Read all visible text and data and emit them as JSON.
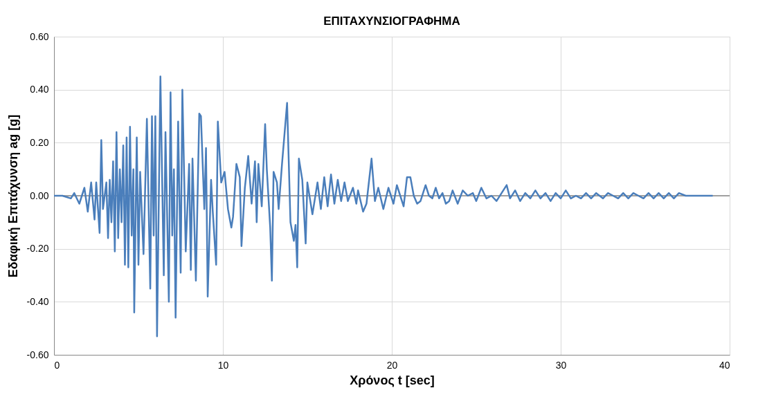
{
  "chart_data": {
    "type": "line",
    "title": "ΕΠΙΤΑΧΥΝΣΙΟΓΡΑΦΗΜΑ",
    "xlabel": "Χρόνος t [sec]",
    "ylabel": "Εδαφική Επιτάχυνση ag [g]",
    "xlim": [
      0,
      40
    ],
    "xticks": [
      0,
      10,
      20,
      30,
      40
    ],
    "ylim": [
      -0.6,
      0.6
    ],
    "yticks": [
      {
        "value": -0.6,
        "label": "-0.60"
      },
      {
        "value": -0.4,
        "label": "-0.40"
      },
      {
        "value": -0.2,
        "label": "-0.20"
      },
      {
        "value": 0,
        "label": "0.00"
      },
      {
        "value": 0.2,
        "label": "0.20"
      },
      {
        "value": 0.4,
        "label": "0.40"
      },
      {
        "value": 0.6,
        "label": "0.60"
      }
    ],
    "grid": true,
    "marker": "none",
    "line_style": "solid",
    "ref_lines": [
      {
        "axis": "y",
        "value": 0,
        "color": "#868686"
      }
    ],
    "series": [
      {
        "color": "#4a7ebb",
        "x": [
          0,
          0.5,
          1.0,
          1.2,
          1.5,
          1.8,
          2.0,
          2.2,
          2.4,
          2.5,
          2.7,
          2.8,
          2.9,
          3.1,
          3.2,
          3.3,
          3.4,
          3.5,
          3.6,
          3.7,
          3.8,
          3.9,
          4.0,
          4.1,
          4.2,
          4.3,
          4.4,
          4.5,
          4.6,
          4.7,
          4.75,
          4.9,
          5.0,
          5.1,
          5.3,
          5.5,
          5.7,
          5.8,
          5.9,
          6.0,
          6.1,
          6.3,
          6.5,
          6.6,
          6.8,
          6.9,
          7.0,
          7.1,
          7.2,
          7.35,
          7.5,
          7.6,
          7.8,
          8.0,
          8.1,
          8.2,
          8.4,
          8.6,
          8.7,
          8.9,
          9.0,
          9.1,
          9.3,
          9.4,
          9.6,
          9.7,
          9.9,
          10.1,
          10.3,
          10.5,
          10.6,
          10.8,
          11.0,
          11.1,
          11.3,
          11.5,
          11.7,
          11.9,
          12.0,
          12.1,
          12.3,
          12.5,
          12.6,
          12.8,
          12.9,
          13.0,
          13.2,
          13.3,
          13.5,
          13.8,
          14.0,
          14.2,
          14.3,
          14.4,
          14.5,
          14.7,
          14.9,
          15.0,
          15.3,
          15.6,
          15.8,
          16.0,
          16.2,
          16.4,
          16.6,
          16.8,
          17.0,
          17.2,
          17.4,
          17.7,
          17.9,
          18.0,
          18.3,
          18.5,
          18.8,
          19.0,
          19.2,
          19.5,
          19.8,
          20.1,
          20.3,
          20.5,
          20.7,
          20.9,
          21.1,
          21.3,
          21.5,
          21.7,
          22.0,
          22.2,
          22.4,
          22.6,
          22.8,
          23.0,
          23.2,
          23.4,
          23.6,
          23.9,
          24.2,
          24.5,
          24.8,
          25.0,
          25.3,
          25.6,
          25.9,
          26.2,
          26.5,
          26.8,
          27.0,
          27.3,
          27.6,
          27.9,
          28.2,
          28.5,
          28.8,
          29.1,
          29.4,
          29.7,
          30.0,
          30.3,
          30.6,
          30.9,
          31.2,
          31.5,
          31.8,
          32.1,
          32.5,
          32.8,
          33.1,
          33.4,
          33.7,
          34.0,
          34.3,
          34.6,
          34.9,
          35.2,
          35.5,
          35.8,
          36.1,
          36.4,
          36.7,
          37.0,
          37.4,
          37.8,
          38.2,
          38.6,
          39.0
        ],
        "values": [
          0.0,
          0.0,
          -0.01,
          0.01,
          -0.03,
          0.03,
          -0.06,
          0.05,
          -0.09,
          0.05,
          -0.14,
          0.21,
          -0.05,
          0.05,
          -0.16,
          0.06,
          -0.1,
          0.13,
          -0.21,
          0.24,
          -0.16,
          0.1,
          -0.1,
          0.19,
          -0.26,
          0.22,
          -0.27,
          0.26,
          -0.15,
          0.1,
          -0.44,
          0.22,
          -0.26,
          0.09,
          -0.22,
          0.29,
          -0.35,
          0.3,
          -0.15,
          0.3,
          -0.53,
          0.45,
          -0.3,
          0.24,
          -0.4,
          0.39,
          -0.15,
          0.1,
          -0.46,
          0.28,
          -0.29,
          0.4,
          -0.21,
          0.12,
          -0.28,
          0.14,
          -0.32,
          0.31,
          0.3,
          -0.05,
          0.18,
          -0.38,
          0.06,
          -0.06,
          -0.26,
          0.28,
          0.05,
          0.09,
          -0.05,
          -0.12,
          -0.08,
          0.12,
          0.07,
          -0.19,
          0.03,
          0.15,
          -0.03,
          0.13,
          -0.1,
          0.12,
          -0.04,
          0.27,
          0.1,
          -0.12,
          -0.32,
          0.09,
          0.05,
          -0.05,
          0.12,
          0.35,
          -0.1,
          -0.17,
          -0.11,
          -0.27,
          0.14,
          0.06,
          -0.18,
          0.05,
          -0.07,
          0.05,
          -0.05,
          0.07,
          -0.04,
          0.08,
          -0.03,
          0.06,
          -0.02,
          0.05,
          -0.02,
          0.03,
          -0.03,
          0.02,
          -0.06,
          -0.03,
          0.14,
          -0.02,
          0.03,
          -0.05,
          0.03,
          -0.03,
          0.04,
          0.0,
          -0.04,
          0.07,
          0.07,
          0.0,
          -0.03,
          -0.02,
          0.04,
          0.0,
          -0.01,
          0.03,
          -0.01,
          0.01,
          -0.03,
          -0.02,
          0.02,
          -0.03,
          0.02,
          0.0,
          0.01,
          -0.02,
          0.03,
          -0.01,
          0.0,
          -0.02,
          0.01,
          0.04,
          -0.01,
          0.02,
          -0.02,
          0.01,
          -0.01,
          0.02,
          -0.01,
          0.01,
          -0.02,
          0.01,
          -0.01,
          0.02,
          -0.01,
          0.0,
          -0.01,
          0.01,
          -0.01,
          0.01,
          -0.01,
          0.01,
          0.0,
          -0.01,
          0.01,
          -0.01,
          0.01,
          0.0,
          -0.01,
          0.01,
          -0.01,
          0.01,
          -0.01,
          0.01,
          -0.01,
          0.01,
          0.0,
          0.0,
          0.0,
          0.0,
          0.0
        ]
      }
    ]
  }
}
